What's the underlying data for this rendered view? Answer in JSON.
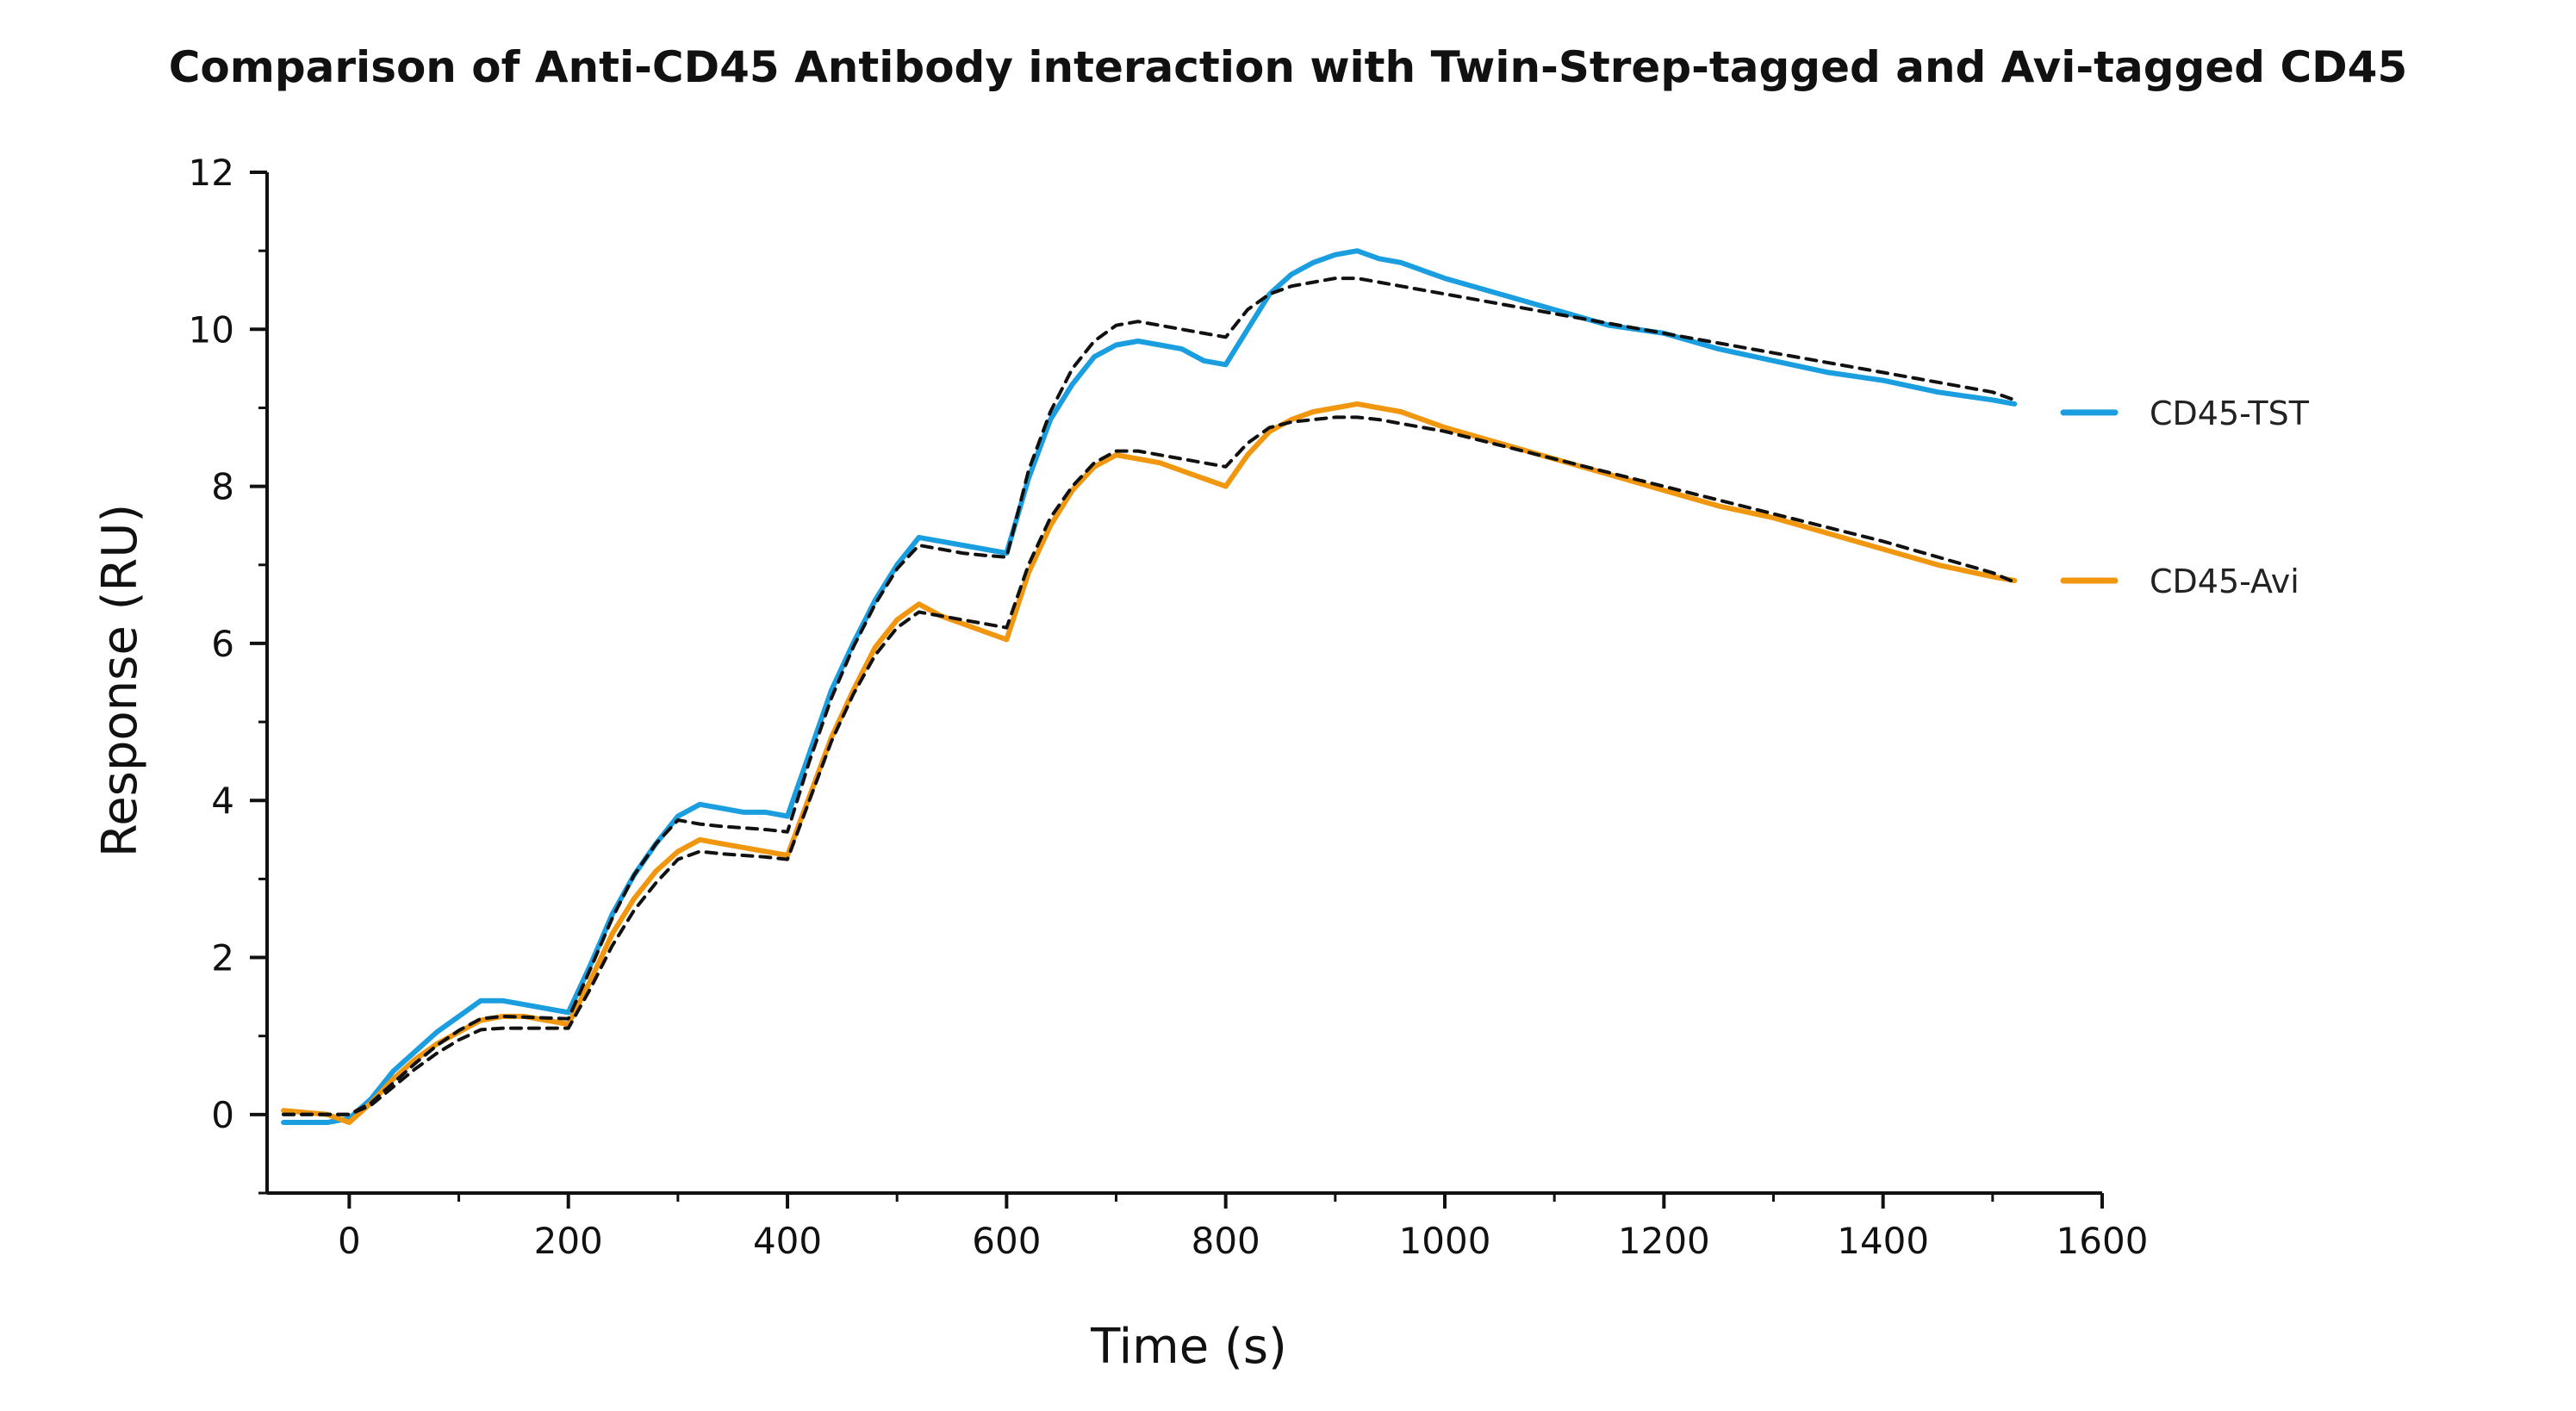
{
  "chart_data": {
    "type": "line",
    "title": "Comparison of Anti-CD45 Antibody interaction with Twin-Strep-tagged and Avi-tagged CD45",
    "xlabel": "Time (s)",
    "ylabel": "Response (RU)",
    "xlim": [
      -75,
      1600
    ],
    "ylim": [
      -1,
      12
    ],
    "x_ticks": [
      "0",
      "200",
      "400",
      "600",
      "800",
      "1000",
      "1200",
      "1400",
      "1600"
    ],
    "x_tick_values": [
      0,
      200,
      400,
      600,
      800,
      1000,
      1200,
      1400,
      1600
    ],
    "y_ticks": [
      "0",
      "2",
      "4",
      "6",
      "8",
      "10",
      "12"
    ],
    "y_tick_values": [
      0,
      2,
      4,
      6,
      8,
      10,
      12
    ],
    "grid": false,
    "legend_position": "right",
    "series": [
      {
        "name": "CD45-TST",
        "color": "#1a9ee0",
        "style": "solid",
        "x": [
          -60,
          -20,
          0,
          20,
          40,
          60,
          80,
          100,
          120,
          140,
          160,
          180,
          200,
          220,
          240,
          260,
          280,
          300,
          320,
          340,
          360,
          380,
          400,
          420,
          440,
          460,
          480,
          500,
          520,
          540,
          560,
          580,
          600,
          620,
          640,
          660,
          680,
          700,
          720,
          740,
          760,
          780,
          800,
          820,
          840,
          860,
          880,
          900,
          920,
          940,
          960,
          1000,
          1050,
          1100,
          1150,
          1200,
          1250,
          1300,
          1350,
          1400,
          1450,
          1500,
          1520
        ],
        "y": [
          -0.1,
          -0.1,
          -0.05,
          0.2,
          0.55,
          0.8,
          1.05,
          1.25,
          1.45,
          1.45,
          1.4,
          1.35,
          1.3,
          1.9,
          2.55,
          3.05,
          3.45,
          3.8,
          3.95,
          3.9,
          3.85,
          3.85,
          3.8,
          4.6,
          5.4,
          6.0,
          6.55,
          7.0,
          7.35,
          7.3,
          7.25,
          7.2,
          7.15,
          8.1,
          8.85,
          9.3,
          9.65,
          9.8,
          9.85,
          9.8,
          9.75,
          9.6,
          9.55,
          10.0,
          10.45,
          10.7,
          10.85,
          10.95,
          11.0,
          10.9,
          10.85,
          10.65,
          10.45,
          10.25,
          10.05,
          9.95,
          9.75,
          9.6,
          9.45,
          9.35,
          9.2,
          9.1,
          9.05
        ]
      },
      {
        "name": "CD45-Avi",
        "color": "#f0960f",
        "style": "solid",
        "x": [
          -60,
          -20,
          0,
          20,
          40,
          60,
          80,
          100,
          120,
          140,
          160,
          180,
          200,
          220,
          240,
          260,
          280,
          300,
          320,
          340,
          360,
          380,
          400,
          420,
          440,
          460,
          480,
          500,
          520,
          540,
          560,
          580,
          600,
          620,
          640,
          660,
          680,
          700,
          720,
          740,
          760,
          780,
          800,
          820,
          840,
          860,
          880,
          900,
          920,
          940,
          960,
          1000,
          1050,
          1100,
          1150,
          1200,
          1250,
          1300,
          1350,
          1400,
          1450,
          1500,
          1520
        ],
        "y": [
          0.05,
          0.0,
          -0.1,
          0.15,
          0.45,
          0.7,
          0.9,
          1.05,
          1.2,
          1.25,
          1.25,
          1.2,
          1.15,
          1.7,
          2.3,
          2.75,
          3.1,
          3.35,
          3.5,
          3.45,
          3.4,
          3.35,
          3.3,
          4.05,
          4.8,
          5.4,
          5.95,
          6.3,
          6.5,
          6.35,
          6.25,
          6.15,
          6.05,
          6.9,
          7.5,
          7.95,
          8.25,
          8.4,
          8.35,
          8.3,
          8.2,
          8.1,
          8.0,
          8.4,
          8.7,
          8.85,
          8.95,
          9.0,
          9.05,
          9.0,
          8.95,
          8.75,
          8.55,
          8.35,
          8.15,
          7.95,
          7.75,
          7.6,
          7.4,
          7.2,
          7.0,
          6.85,
          6.8
        ]
      },
      {
        "name": "",
        "color": "#111111",
        "style": "dashed",
        "x": [
          -60,
          0,
          20,
          40,
          60,
          80,
          100,
          120,
          140,
          160,
          180,
          200,
          220,
          240,
          260,
          280,
          300,
          320,
          340,
          360,
          380,
          400,
          420,
          440,
          460,
          480,
          500,
          520,
          540,
          560,
          580,
          600,
          620,
          640,
          660,
          680,
          700,
          720,
          740,
          760,
          780,
          800,
          820,
          840,
          860,
          880,
          900,
          920,
          940,
          960,
          1000,
          1100,
          1200,
          1300,
          1400,
          1500,
          1520
        ],
        "y": [
          0.0,
          0.0,
          0.15,
          0.4,
          0.65,
          0.88,
          1.07,
          1.22,
          1.25,
          1.24,
          1.23,
          1.22,
          1.85,
          2.5,
          3.05,
          3.45,
          3.75,
          3.7,
          3.67,
          3.65,
          3.63,
          3.6,
          4.5,
          5.3,
          5.95,
          6.5,
          6.95,
          7.25,
          7.2,
          7.15,
          7.12,
          7.1,
          8.2,
          8.95,
          9.5,
          9.85,
          10.05,
          10.1,
          10.05,
          10.0,
          9.95,
          9.9,
          10.25,
          10.45,
          10.55,
          10.6,
          10.65,
          10.65,
          10.6,
          10.55,
          10.45,
          10.2,
          9.95,
          9.7,
          9.45,
          9.2,
          9.1
        ]
      },
      {
        "name": "",
        "color": "#111111",
        "style": "dashed",
        "x": [
          -60,
          0,
          20,
          40,
          60,
          80,
          100,
          120,
          140,
          160,
          180,
          200,
          220,
          240,
          260,
          280,
          300,
          320,
          340,
          360,
          380,
          400,
          420,
          440,
          460,
          480,
          500,
          520,
          540,
          560,
          580,
          600,
          620,
          640,
          660,
          680,
          700,
          720,
          740,
          760,
          780,
          800,
          820,
          840,
          860,
          880,
          900,
          920,
          940,
          960,
          1000,
          1100,
          1200,
          1300,
          1400,
          1500,
          1520
        ],
        "y": [
          0.0,
          0.0,
          0.12,
          0.35,
          0.58,
          0.78,
          0.95,
          1.08,
          1.1,
          1.1,
          1.1,
          1.1,
          1.6,
          2.15,
          2.6,
          2.95,
          3.25,
          3.35,
          3.32,
          3.3,
          3.28,
          3.25,
          4.0,
          4.75,
          5.35,
          5.85,
          6.2,
          6.4,
          6.35,
          6.3,
          6.25,
          6.2,
          7.0,
          7.6,
          8.0,
          8.3,
          8.45,
          8.45,
          8.4,
          8.35,
          8.3,
          8.25,
          8.55,
          8.75,
          8.82,
          8.85,
          8.88,
          8.88,
          8.85,
          8.8,
          8.7,
          8.35,
          8.0,
          7.65,
          7.3,
          6.9,
          6.78
        ]
      }
    ]
  }
}
